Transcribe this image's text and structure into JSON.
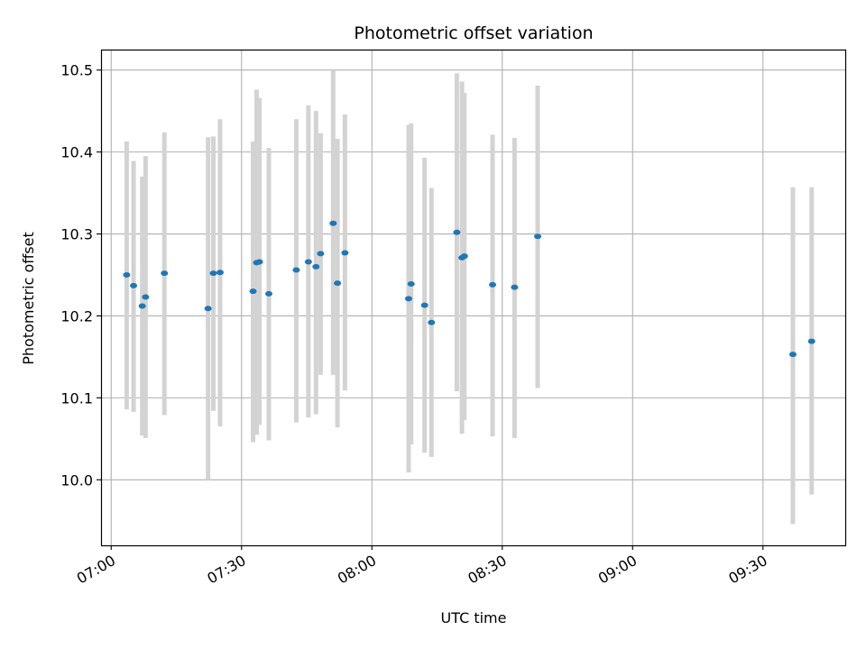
{
  "chart_data": {
    "type": "scatter",
    "title": "Photometric offset variation",
    "xlabel": "UTC time",
    "ylabel": "Photometric offset",
    "x_ticks": [
      "07:00",
      "07:30",
      "08:00",
      "08:30",
      "09:00",
      "09:30"
    ],
    "y_ticks": [
      "10.0",
      "10.1",
      "10.2",
      "10.3",
      "10.4",
      "10.5"
    ],
    "xlim": [
      "06:57:40",
      "09:48:56"
    ],
    "ylim": [
      9.92,
      10.525
    ],
    "grid": true,
    "point_color": "#1f77b4",
    "errorbar_color": "#d3d3d3",
    "points": [
      {
        "time": "07:03:34",
        "value": 10.25,
        "err_low": 10.086,
        "err_high": 10.413
      },
      {
        "time": "07:05:09",
        "value": 10.237,
        "err_low": 10.083,
        "err_high": 10.389
      },
      {
        "time": "07:07:09",
        "value": 10.212,
        "err_low": 10.054,
        "err_high": 10.37
      },
      {
        "time": "07:07:55",
        "value": 10.223,
        "err_low": 10.051,
        "err_high": 10.395
      },
      {
        "time": "07:12:15",
        "value": 10.252,
        "err_low": 10.079,
        "err_high": 10.424
      },
      {
        "time": "07:22:18",
        "value": 10.209,
        "err_low": 10.0,
        "err_high": 10.418
      },
      {
        "time": "07:23:31",
        "value": 10.252,
        "err_low": 10.084,
        "err_high": 10.419
      },
      {
        "time": "07:25:04",
        "value": 10.253,
        "err_low": 10.065,
        "err_high": 10.44
      },
      {
        "time": "07:32:39",
        "value": 10.23,
        "err_low": 10.046,
        "err_high": 10.413
      },
      {
        "time": "07:33:29",
        "value": 10.265,
        "err_low": 10.055,
        "err_high": 10.476
      },
      {
        "time": "07:34:07",
        "value": 10.266,
        "err_low": 10.067,
        "err_high": 10.466
      },
      {
        "time": "07:36:17",
        "value": 10.227,
        "err_low": 10.048,
        "err_high": 10.405
      },
      {
        "time": "07:42:36",
        "value": 10.256,
        "err_low": 10.07,
        "err_high": 10.44
      },
      {
        "time": "07:45:23",
        "value": 10.266,
        "err_low": 10.076,
        "err_high": 10.457
      },
      {
        "time": "07:47:08",
        "value": 10.26,
        "err_low": 10.08,
        "err_high": 10.45
      },
      {
        "time": "07:48:12",
        "value": 10.276,
        "err_low": 10.128,
        "err_high": 10.423
      },
      {
        "time": "07:51:05",
        "value": 10.313,
        "err_low": 10.128,
        "err_high": 10.5
      },
      {
        "time": "07:52:05",
        "value": 10.24,
        "err_low": 10.064,
        "err_high": 10.416
      },
      {
        "time": "07:53:48",
        "value": 10.277,
        "err_low": 10.109,
        "err_high": 10.446
      },
      {
        "time": "08:08:27",
        "value": 10.221,
        "err_low": 10.009,
        "err_high": 10.433
      },
      {
        "time": "08:09:02",
        "value": 10.239,
        "err_low": 10.043,
        "err_high": 10.435
      },
      {
        "time": "08:12:08",
        "value": 10.213,
        "err_low": 10.033,
        "err_high": 10.393
      },
      {
        "time": "08:13:42",
        "value": 10.192,
        "err_low": 10.028,
        "err_high": 10.356
      },
      {
        "time": "08:19:33",
        "value": 10.302,
        "err_low": 10.108,
        "err_high": 10.496
      },
      {
        "time": "08:20:44",
        "value": 10.271,
        "err_low": 10.056,
        "err_high": 10.486
      },
      {
        "time": "08:21:17",
        "value": 10.273,
        "err_low": 10.073,
        "err_high": 10.472
      },
      {
        "time": "08:27:46",
        "value": 10.238,
        "err_low": 10.053,
        "err_high": 10.421
      },
      {
        "time": "08:32:50",
        "value": 10.235,
        "err_low": 10.051,
        "err_high": 10.417
      },
      {
        "time": "08:38:09",
        "value": 10.297,
        "err_low": 10.112,
        "err_high": 10.481
      },
      {
        "time": "09:36:53",
        "value": 10.153,
        "err_low": 9.946,
        "err_high": 10.357
      },
      {
        "time": "09:41:12",
        "value": 10.169,
        "err_low": 9.982,
        "err_high": 10.357
      }
    ]
  }
}
